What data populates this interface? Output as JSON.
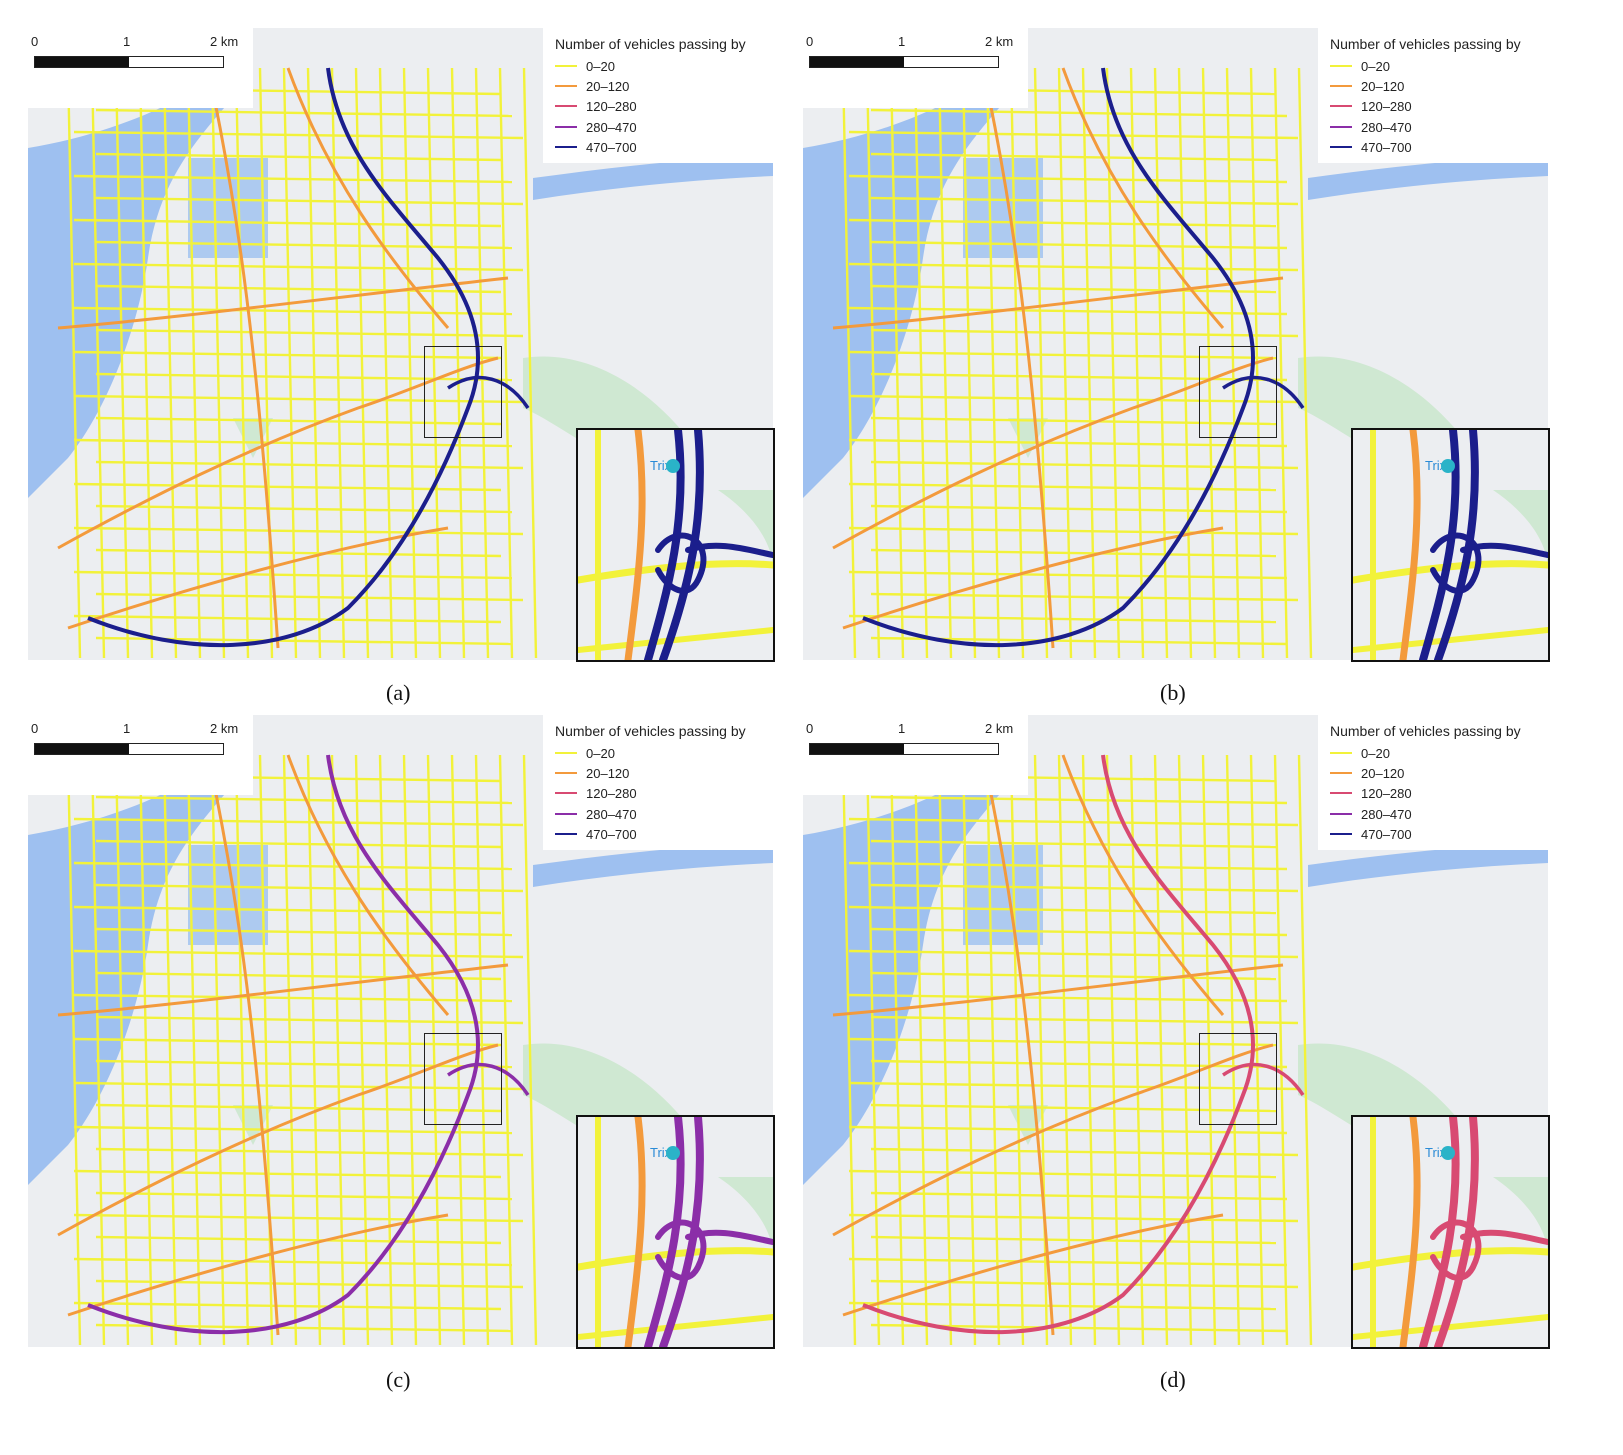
{
  "figure": {
    "panels": [
      {
        "id": "a",
        "caption": "(a)",
        "scale": {
          "ticks": [
            "0",
            "1",
            "2 km"
          ]
        },
        "legend": {
          "title": "Number of vehicles passing by",
          "items": [
            {
              "label": "0–20",
              "color": "#f2f23a"
            },
            {
              "label": "20–120",
              "color": "#f39a3c"
            },
            {
              "label": "120–280",
              "color": "#d84a72"
            },
            {
              "label": "280–470",
              "color": "#8b2ea8"
            },
            {
              "label": "470–700",
              "color": "#1b1e8c"
            }
          ]
        },
        "ring_class": "470–700",
        "inset_labels": [
          "Trix"
        ]
      },
      {
        "id": "b",
        "caption": "(b)",
        "scale": {
          "ticks": [
            "0",
            "1",
            "2 km"
          ]
        },
        "legend": {
          "title": "Number of vehicles passing by",
          "items": [
            {
              "label": "0–20",
              "color": "#f2f23a"
            },
            {
              "label": "20–120",
              "color": "#f39a3c"
            },
            {
              "label": "120–280",
              "color": "#d84a72"
            },
            {
              "label": "280–470",
              "color": "#8b2ea8"
            },
            {
              "label": "470–700",
              "color": "#1b1e8c"
            }
          ]
        },
        "ring_class": "470–700",
        "inset_labels": [
          "Trix"
        ]
      },
      {
        "id": "c",
        "caption": "(c)",
        "scale": {
          "ticks": [
            "0",
            "1",
            "2 km"
          ]
        },
        "legend": {
          "title": "Number of vehicles passing by",
          "items": [
            {
              "label": "0–20",
              "color": "#f2f23a"
            },
            {
              "label": "20–120",
              "color": "#f39a3c"
            },
            {
              "label": "120–280",
              "color": "#d84a72"
            },
            {
              "label": "280–470",
              "color": "#8b2ea8"
            },
            {
              "label": "470–700",
              "color": "#1b1e8c"
            }
          ]
        },
        "ring_class": "280–470",
        "inset_labels": [
          "Trix"
        ]
      },
      {
        "id": "d",
        "caption": "(d)",
        "scale": {
          "ticks": [
            "0",
            "1",
            "2 km"
          ]
        },
        "legend": {
          "title": "Number of vehicles passing by",
          "items": [
            {
              "label": "0–20",
              "color": "#f2f23a"
            },
            {
              "label": "20–120",
              "color": "#f39a3c"
            },
            {
              "label": "120–280",
              "color": "#d84a72"
            },
            {
              "label": "280–470",
              "color": "#8b2ea8"
            },
            {
              "label": "470–700",
              "color": "#1b1e8c"
            }
          ]
        },
        "ring_class": "120–280",
        "inset_labels": [
          "Trix"
        ]
      }
    ],
    "colors": {
      "map_background": "#eceef1",
      "water": "#9ec0f0",
      "park": "#cfe8d2"
    }
  }
}
